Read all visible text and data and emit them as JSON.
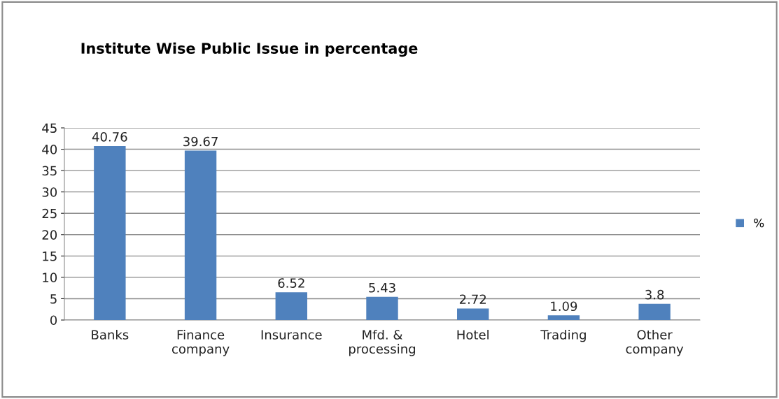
{
  "chart_data": {
    "type": "bar",
    "title": "Institute Wise Public Issue in percentage",
    "categories": [
      "Banks",
      "Finance\ncompany",
      "Insurance",
      "Mfd. &\nprocessing",
      "Hotel",
      "Trading",
      "Other\ncompany"
    ],
    "series": [
      {
        "name": "%",
        "color": "#4f81bd",
        "values": [
          40.76,
          39.67,
          6.52,
          5.43,
          2.72,
          1.09,
          3.8
        ]
      }
    ],
    "ylim": [
      0,
      45
    ],
    "yticks": [
      0,
      5,
      10,
      15,
      20,
      25,
      30,
      35,
      40,
      45
    ],
    "grid": "y",
    "legend": "right",
    "data_labels": true
  }
}
